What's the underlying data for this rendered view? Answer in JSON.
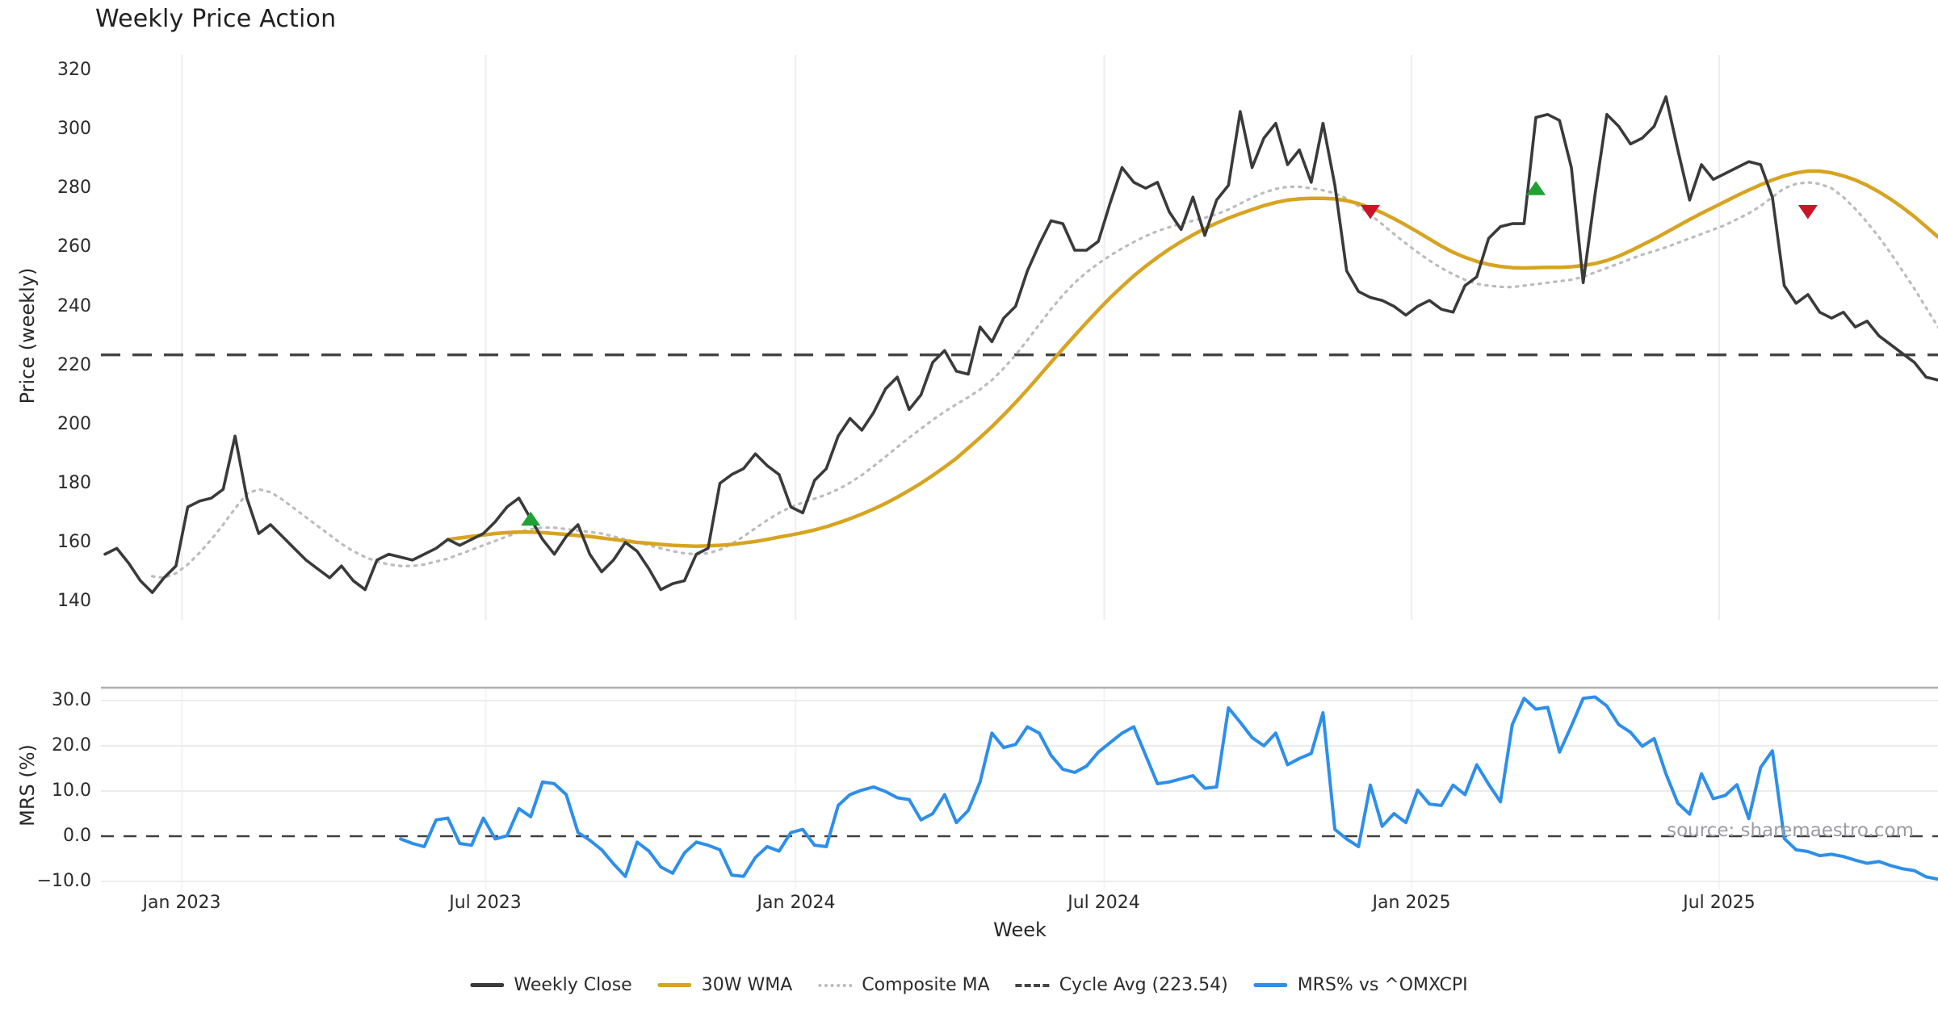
{
  "title": "Weekly Price Action",
  "source": "source: sharemaestro.com",
  "axes": {
    "price_ylabel": "Price (weekly)",
    "mrs_ylabel": "MRS (%)",
    "xlabel": "Week"
  },
  "colors": {
    "close": "#3a3a3a",
    "wma": "#d7a421",
    "composite": "#bcbcbc",
    "cycle": "#454545",
    "mrs": "#2d8fea",
    "buy": "#1fa134",
    "sell": "#cb1426",
    "grid_vertical": "#ededf2",
    "grid_horizontal": "#ececec",
    "spine": "#b0b0b0"
  },
  "legend": {
    "items": [
      {
        "label": "Weekly Close",
        "series": "close",
        "style": "solid"
      },
      {
        "label": "30W WMA",
        "series": "wma",
        "style": "solid"
      },
      {
        "label": "Composite MA",
        "series": "composite",
        "style": "dotted"
      },
      {
        "label": "Cycle Avg (223.54)",
        "series": "cycle",
        "style": "dashed"
      },
      {
        "label": "MRS% vs ^OMXCPI",
        "series": "mrs",
        "style": "solid"
      }
    ]
  },
  "chart_data": [
    {
      "type": "line",
      "panel": "price",
      "title": "Weekly Price Action",
      "ylabel": "Price (weekly)",
      "ylim": [
        140,
        320
      ],
      "grid": "vertical-only",
      "ytick_labels": [
        "320",
        "300",
        "280",
        "260",
        "240",
        "220",
        "200",
        "180",
        "160",
        "140"
      ],
      "ytick_values": [
        320,
        300,
        280,
        260,
        240,
        220,
        200,
        180,
        160,
        140
      ],
      "x_ticks": [
        {
          "label": "Jan 2023",
          "week": 6.5
        },
        {
          "label": "Jul 2023",
          "week": 32.2
        },
        {
          "label": "Jan 2024",
          "week": 58.4
        },
        {
          "label": "Jul 2024",
          "week": 84.5
        },
        {
          "label": "Jan 2025",
          "week": 110.5
        },
        {
          "label": "Jul 2025",
          "week": 136.5
        }
      ],
      "cycle_avg": 223.54,
      "weeks_total": 156,
      "series": [
        {
          "name": "Weekly Close",
          "key": "close",
          "start": 0,
          "values": [
            156,
            158,
            153,
            147,
            143,
            148,
            152,
            172,
            174,
            175,
            178,
            196,
            175,
            163,
            166,
            162,
            158,
            154,
            151,
            148,
            152,
            147,
            144,
            154,
            156,
            155,
            154,
            156,
            158,
            161,
            159,
            161,
            163,
            167,
            172,
            175,
            168,
            161,
            156,
            162,
            166,
            156,
            150,
            154,
            160,
            157,
            151,
            144,
            146,
            147,
            156,
            158,
            180,
            183,
            185,
            190,
            186,
            183,
            172,
            170,
            181,
            185,
            196,
            202,
            198,
            204,
            212,
            216,
            205,
            210,
            221,
            225,
            218,
            217,
            233,
            228,
            236,
            240,
            252,
            261,
            269,
            268,
            259,
            259,
            262,
            275,
            287,
            282,
            280,
            282,
            272,
            266,
            277,
            264,
            276,
            281,
            306,
            287,
            297,
            302,
            288,
            293,
            282,
            302,
            281,
            252,
            245,
            243,
            242,
            240,
            237,
            240,
            242,
            239,
            238,
            247,
            250,
            263,
            267,
            268,
            268,
            304,
            305,
            303,
            287,
            248,
            278,
            305,
            301,
            295,
            297,
            301,
            311,
            293,
            276,
            288,
            283,
            285,
            287,
            289,
            288,
            277,
            247,
            241,
            244,
            238,
            236,
            238,
            233,
            235,
            230,
            227,
            224,
            221,
            216,
            215
          ]
        },
        {
          "name": "30W WMA",
          "key": "wma",
          "start": 29,
          "values": [
            161,
            161.5,
            162,
            162.5,
            163,
            163.3,
            163.5,
            163.5,
            163.3,
            163,
            162.7,
            162.3,
            162,
            161.5,
            161,
            160.5,
            160,
            159.7,
            159.3,
            159,
            158.8,
            158.7,
            158.8,
            159,
            159.3,
            159.8,
            160.3,
            161,
            161.8,
            162.5,
            163.3,
            164.2,
            165.3,
            166.6,
            168,
            169.6,
            171.3,
            173.2,
            175.3,
            177.6,
            180,
            182.7,
            185.5,
            188.5,
            192,
            195.5,
            199.2,
            203.2,
            207.4,
            211.8,
            216.4,
            221,
            225.6,
            230.1,
            234.5,
            238.8,
            242.9,
            246.7,
            250.3,
            253.6,
            256.6,
            259.4,
            261.9,
            264.2,
            266.3,
            268.2,
            269.9,
            271.4,
            272.8,
            274.1,
            275.2,
            276,
            276.4,
            276.6,
            276.6,
            276.4,
            275.8,
            274.8,
            273.4,
            271.7,
            269.7,
            267.5,
            265.2,
            262.8,
            260.4,
            258.3,
            256.6,
            255.2,
            254.2,
            253.5,
            253.1,
            253,
            253.1,
            253.2,
            253.2,
            253.4,
            253.8,
            254.5,
            255.5,
            257,
            258.8,
            260.8,
            262.8,
            265,
            267.2,
            269.4,
            271.5,
            273.5,
            275.5,
            277.5,
            279.4,
            281.2,
            282.8,
            284.2,
            285.2,
            285.8,
            285.8,
            285.2,
            284.2,
            282.8,
            281,
            278.8,
            276.3,
            273.5,
            270.4,
            267,
            263.5
          ]
        },
        {
          "name": "Composite MA",
          "key": "composite",
          "start": 4,
          "values": [
            148.5,
            148,
            149.5,
            152.5,
            156.5,
            161,
            166,
            171.5,
            176.5,
            178,
            177,
            174.5,
            171.5,
            168.5,
            165.5,
            162.5,
            159.5,
            157,
            155,
            153.5,
            152.5,
            152,
            152,
            152.5,
            153.5,
            154.5,
            156,
            157.5,
            159,
            160.5,
            162,
            163.5,
            164.5,
            165,
            165,
            164.5,
            164,
            163.5,
            163,
            162,
            161,
            160,
            159,
            158,
            157,
            156.3,
            156,
            156.3,
            157.5,
            159.5,
            162,
            164.8,
            167.5,
            170,
            172,
            173.5,
            174.8,
            176.2,
            178,
            180.2,
            182.8,
            185.8,
            189,
            192.3,
            195.5,
            198.5,
            201.5,
            204.3,
            206.8,
            209.2,
            211.8,
            215,
            219,
            223.5,
            228.5,
            233.8,
            239,
            243.8,
            248,
            251.5,
            254.5,
            257.2,
            259.6,
            261.8,
            263.8,
            265.5,
            266.8,
            268,
            269,
            270,
            271.2,
            272.8,
            274.8,
            276.8,
            278.5,
            279.8,
            280.5,
            280.5,
            280,
            279.3,
            278.3,
            276.5,
            274,
            271,
            267.8,
            264.5,
            261.3,
            258.3,
            255.5,
            253,
            250.8,
            249,
            247.6,
            247,
            246.6,
            246.5,
            247,
            247.5,
            248,
            248.5,
            249,
            250,
            251.5,
            253,
            254.5,
            256,
            257.5,
            258.7,
            260,
            261.5,
            263,
            264.5,
            266,
            267.5,
            269.5,
            271.5,
            274,
            277,
            280,
            281.5,
            282,
            281.5,
            280,
            277,
            273,
            268.5,
            263.5,
            258,
            252,
            246,
            239.5,
            233
          ]
        }
      ],
      "signals": {
        "buy": [
          {
            "week": 36,
            "price": 168
          },
          {
            "week": 121,
            "price": 280
          }
        ],
        "sell": [
          {
            "week": 107,
            "price": 272
          },
          {
            "week": 144,
            "price": 272
          }
        ]
      }
    },
    {
      "type": "line",
      "panel": "mrs",
      "ylabel": "MRS (%)",
      "xlabel": "Week",
      "ylim": [
        -13,
        33
      ],
      "grid": "horizontal",
      "ytick_labels": [
        "30.0",
        "20.0",
        "10.0",
        "0.0",
        "−10.0"
      ],
      "ytick_values": [
        30,
        20,
        10,
        0,
        -10
      ],
      "zero_line": 0,
      "series": [
        {
          "name": "MRS% vs ^OMXCPI",
          "key": "mrs",
          "start": 25,
          "values": [
            -0.6,
            -1.6,
            -2.3,
            3.6,
            4,
            -1.6,
            -2,
            4,
            -0.6,
            0.1,
            6.1,
            4.3,
            12,
            11.6,
            9.2,
            0.8,
            -0.9,
            -3,
            -6.1,
            -8.9,
            -1.3,
            -3.3,
            -6.8,
            -8.2,
            -3.7,
            -1.3,
            -2,
            -3,
            -8.6,
            -8.9,
            -4.7,
            -2.3,
            -3.3,
            0.8,
            1.5,
            -2,
            -2.3,
            6.8,
            9.2,
            10.2,
            10.9,
            9.9,
            8.5,
            8.1,
            3.6,
            5,
            9.2,
            3,
            5.7,
            12,
            22.8,
            19.6,
            20.3,
            24.2,
            22.8,
            17.9,
            14.8,
            14.1,
            15.5,
            18.6,
            20.7,
            22.8,
            24.2,
            17.9,
            11.6,
            12,
            12.7,
            13.4,
            10.6,
            10.9,
            28.4,
            25.2,
            21.8,
            20,
            22.8,
            15.8,
            17.2,
            18.3,
            27.3,
            1.5,
            -0.6,
            -2.3,
            11.3,
            2.2,
            5,
            3,
            10.2,
            7.1,
            6.8,
            11.3,
            9.2,
            15.8,
            11.5,
            7.6,
            24.7,
            30.5,
            28.1,
            28.5,
            18.6,
            24.4,
            30.5,
            30.8,
            28.8,
            24.7,
            23,
            19.9,
            21.6,
            13.8,
            7.3,
            4.9,
            13.8,
            8.3,
            9,
            11.4,
            3.9,
            15.2,
            18.9,
            -0.5,
            -3,
            -3.4,
            -4.3,
            -4,
            -4.5,
            -5.3,
            -6,
            -5.6,
            -6.5,
            -7.2,
            -7.6,
            -9,
            -9.5
          ]
        }
      ]
    }
  ]
}
